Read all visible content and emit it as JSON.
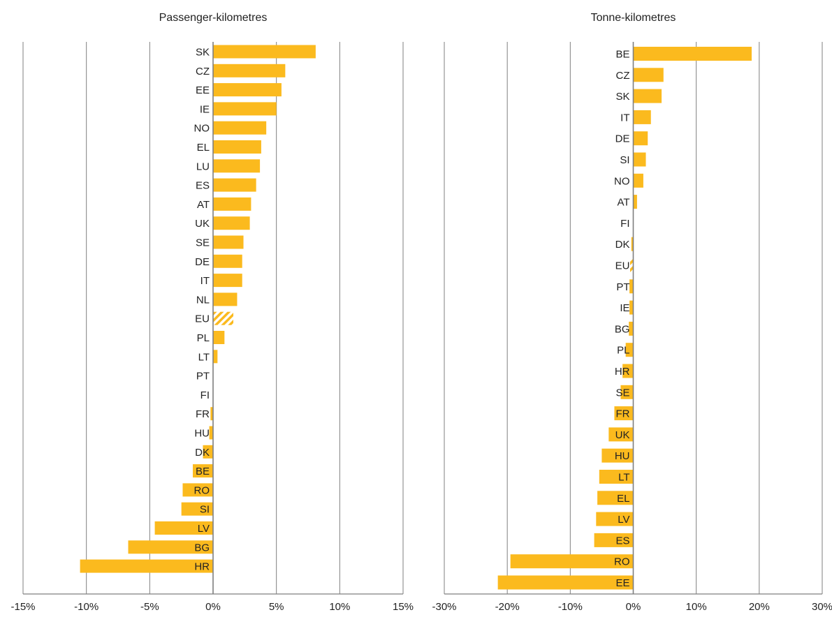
{
  "colors": {
    "bar": "#FBBA1E",
    "grid": "#7F7F7F",
    "text": "#222222"
  },
  "chart_data": [
    {
      "type": "bar",
      "orientation": "horizontal",
      "title": "Passenger-kilometres",
      "xlim": [
        -15,
        15
      ],
      "ticks": [
        -15,
        -10,
        -5,
        0,
        5,
        10,
        15
      ],
      "tick_labels": [
        "-15%",
        "-10%",
        "-5%",
        "0%",
        "5%",
        "10%",
        "15%"
      ],
      "grid": true,
      "categories": [
        "SK",
        "CZ",
        "EE",
        "IE",
        "NO",
        "EL",
        "LU",
        "ES",
        "AT",
        "UK",
        "SE",
        "DE",
        "IT",
        "NL",
        "EU",
        "PL",
        "LT",
        "PT",
        "FI",
        "FR",
        "HU",
        "DK",
        "BE",
        "RO",
        "SI",
        "LV",
        "BG",
        "HR"
      ],
      "values": [
        8.1,
        5.7,
        5.4,
        5.0,
        4.2,
        3.8,
        3.7,
        3.4,
        3.0,
        2.9,
        2.4,
        2.3,
        2.3,
        1.9,
        1.6,
        0.9,
        0.35,
        0,
        0,
        -0.2,
        -0.3,
        -0.8,
        -1.6,
        -2.4,
        -2.5,
        -4.6,
        -6.7,
        -10.5
      ],
      "hatched": [
        "EU"
      ]
    },
    {
      "type": "bar",
      "orientation": "horizontal",
      "title": "Tonne-kilometres",
      "xlim": [
        -30,
        30
      ],
      "ticks": [
        -30,
        -20,
        -10,
        0,
        10,
        20,
        30
      ],
      "tick_labels": [
        "-30%",
        "-20%",
        "-10%",
        "0%",
        "10%",
        "20%",
        "30%"
      ],
      "grid": true,
      "categories": [
        "BE",
        "CZ",
        "SK",
        "IT",
        "DE",
        "SI",
        "NO",
        "AT",
        "FI",
        "DK",
        "EU",
        "PT",
        "IE",
        "BG",
        "PL",
        "HR",
        "SE",
        "FR",
        "UK",
        "HU",
        "LT",
        "EL",
        "LV",
        "ES",
        "RO",
        "EE"
      ],
      "values": [
        18.8,
        4.8,
        4.5,
        2.8,
        2.3,
        2.0,
        1.6,
        0.6,
        0,
        -0.3,
        -0.5,
        -0.6,
        -0.6,
        -0.7,
        -1.2,
        -1.7,
        -2.0,
        -3.0,
        -3.9,
        -5.0,
        -5.4,
        -5.7,
        -5.9,
        -6.2,
        -19.5,
        -21.5
      ],
      "hatched": [
        "EU"
      ]
    }
  ]
}
